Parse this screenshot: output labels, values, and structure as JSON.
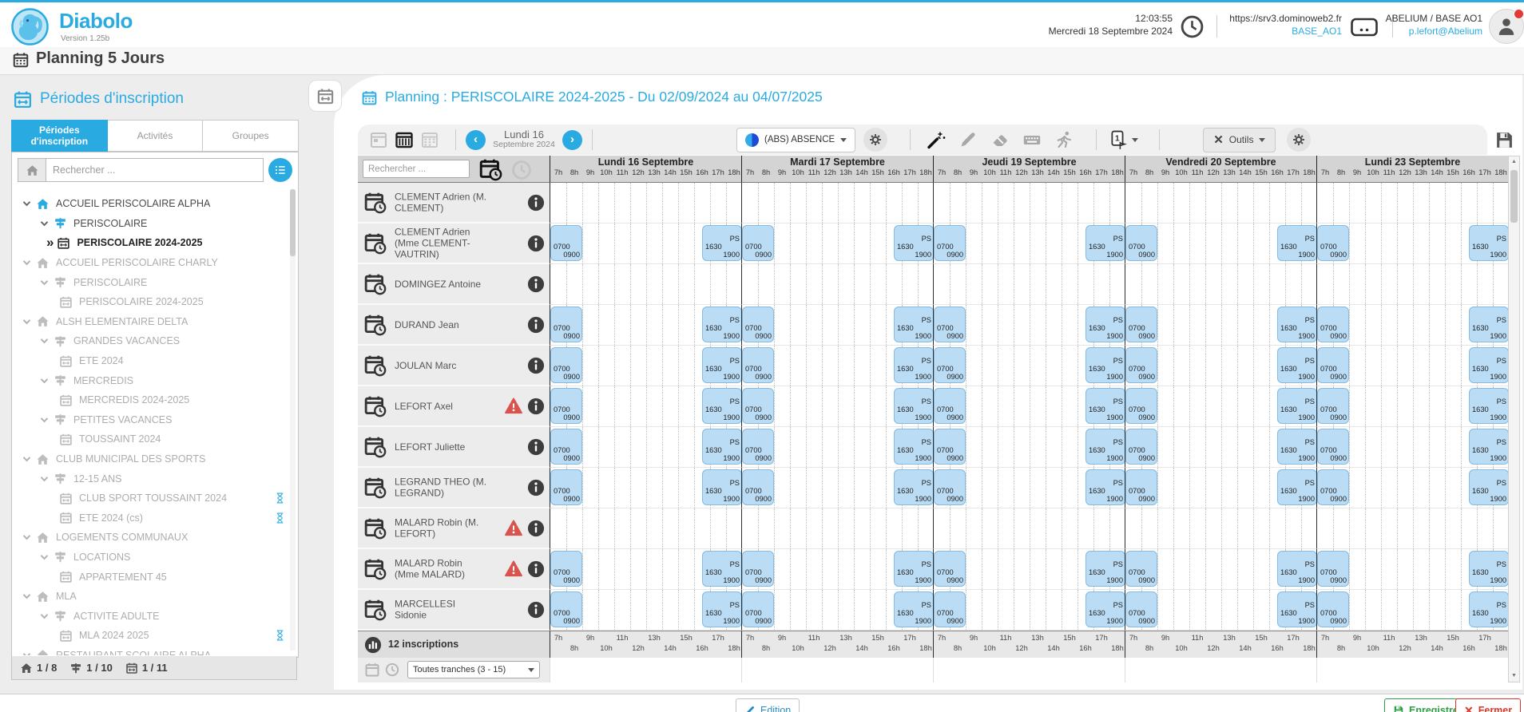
{
  "header": {
    "app_name": "Diabolo",
    "version": "Version 1.25b",
    "time": "12:03:55",
    "date": "Mercredi 18 Septembre 2024",
    "server_url": "https://srv3.dominoweb2.fr",
    "server_base": "BASE_AO1",
    "account": "ABELIUM / BASE AO1",
    "user_email": "p.lefort@Abelium"
  },
  "page_title": "Planning 5 Jours",
  "colors": {
    "accent": "#29abe2",
    "event_fill": "#badcf4",
    "event_border": "#85bbe2",
    "warning_red": "#d9534f",
    "save_green": "#2ea043",
    "close_red": "#e0352b"
  },
  "sidebar": {
    "title": "Périodes d'inscription",
    "tabs": [
      {
        "label": "Périodes\nd'inscription",
        "active": true
      },
      {
        "label": "Activités",
        "active": false
      },
      {
        "label": "Groupes",
        "active": false
      }
    ],
    "search_placeholder": "Rechercher ...",
    "tree": [
      {
        "label": "ACCUEIL PERISCOLAIRE ALPHA",
        "icon": "home",
        "level": 0,
        "chevron": true,
        "state": "active"
      },
      {
        "label": "PERISCOLAIRE",
        "icon": "signpost",
        "level": 1,
        "chevron": true,
        "state": "active"
      },
      {
        "label": "PERISCOLAIRE 2024-2025",
        "icon": "calendar",
        "level": 2,
        "chevron": false,
        "state": "selected"
      },
      {
        "label": "ACCUEIL PERISCOLAIRE CHARLY",
        "icon": "home",
        "level": 0,
        "chevron": true,
        "state": "dim"
      },
      {
        "label": "PERISCOLAIRE",
        "icon": "signpost",
        "level": 1,
        "chevron": true,
        "state": "dim"
      },
      {
        "label": "PERISCOLAIRE 2024-2025",
        "icon": "calendar",
        "level": 2,
        "chevron": false,
        "state": "dim"
      },
      {
        "label": "ALSH ELEMENTAIRE DELTA",
        "icon": "home",
        "level": 0,
        "chevron": true,
        "state": "dim"
      },
      {
        "label": "GRANDES VACANCES",
        "icon": "signpost",
        "level": 1,
        "chevron": true,
        "state": "dim"
      },
      {
        "label": "ETE 2024",
        "icon": "calendar",
        "level": 2,
        "chevron": false,
        "state": "dim"
      },
      {
        "label": "MERCREDIS",
        "icon": "signpost",
        "level": 1,
        "chevron": true,
        "state": "dim"
      },
      {
        "label": "MERCREDIS 2024-2025",
        "icon": "calendar",
        "level": 2,
        "chevron": false,
        "state": "dim"
      },
      {
        "label": "PETITES VACANCES",
        "icon": "signpost",
        "level": 1,
        "chevron": true,
        "state": "dim"
      },
      {
        "label": "TOUSSAINT 2024",
        "icon": "calendar",
        "level": 2,
        "chevron": false,
        "state": "dim"
      },
      {
        "label": "CLUB MUNICIPAL DES SPORTS",
        "icon": "home",
        "level": 0,
        "chevron": true,
        "state": "dim"
      },
      {
        "label": "12-15 ANS",
        "icon": "signpost",
        "level": 1,
        "chevron": true,
        "state": "dim"
      },
      {
        "label": "CLUB SPORT TOUSSAINT 2024",
        "icon": "calendar",
        "level": 2,
        "chevron": false,
        "state": "dim",
        "hourglass": true
      },
      {
        "label": "ETE 2024 (cs)",
        "icon": "calendar",
        "level": 2,
        "chevron": false,
        "state": "dim",
        "hourglass": true
      },
      {
        "label": "LOGEMENTS COMMUNAUX",
        "icon": "home",
        "level": 0,
        "chevron": true,
        "state": "dim"
      },
      {
        "label": "LOCATIONS",
        "icon": "signpost",
        "level": 1,
        "chevron": true,
        "state": "dim"
      },
      {
        "label": "APPARTEMENT 45",
        "icon": "calendar",
        "level": 2,
        "chevron": false,
        "state": "dim"
      },
      {
        "label": "MLA",
        "icon": "home",
        "level": 0,
        "chevron": true,
        "state": "dim"
      },
      {
        "label": "ACTIVITE ADULTE",
        "icon": "signpost",
        "level": 1,
        "chevron": true,
        "state": "dim"
      },
      {
        "label": "MLA 2024 2025",
        "icon": "calendar",
        "level": 2,
        "chevron": false,
        "state": "dim",
        "hourglass": true
      },
      {
        "label": "RESTAURANT SCOLAIRE ALPHA",
        "icon": "home",
        "level": 0,
        "chevron": true,
        "state": "dim"
      }
    ],
    "footer_counts": [
      {
        "icon": "home",
        "value": "1 / 8"
      },
      {
        "icon": "signpost",
        "value": "1 / 10"
      },
      {
        "icon": "calendar",
        "value": "1 / 11"
      }
    ]
  },
  "planning": {
    "title": "Planning : PERISCOLAIRE 2024-2025 - Du 02/09/2024 au 04/07/2025",
    "toolbar": {
      "nav_day": "Lundi 16",
      "nav_month": "Septembre 2024",
      "prev": "‹",
      "next": "›",
      "absence_label": "(ABS) ABSENCE",
      "badge_value": "1",
      "outils_label": "Outils"
    },
    "search_placeholder": "Rechercher ...",
    "days": [
      "Lundi 16 Septembre",
      "Mardi 17 Septembre",
      "Jeudi 19 Septembre",
      "Vendredi 20 Septembre",
      "Lundi 23 Septembre"
    ],
    "hours": [
      "7h",
      "8h",
      "9h",
      "10h",
      "11h",
      "12h",
      "13h",
      "14h",
      "15h",
      "16h",
      "17h",
      "18h"
    ],
    "day_start_hour": 7,
    "day_end_hour": 19,
    "blocks": {
      "morning": {
        "start": "0700",
        "end": "0900",
        "from_hour": 7,
        "to_hour": 9
      },
      "evening": {
        "start": "1630",
        "end": "1900",
        "tag": "PS",
        "from_hour": 16.5,
        "to_hour": 19
      }
    },
    "rows": [
      {
        "name": "CLEMENT Adrien (M. CLEMENT)",
        "warning": false,
        "events": false
      },
      {
        "name": "CLEMENT Adrien (Mme CLEMENT-VAUTRIN)",
        "warning": false,
        "events": true
      },
      {
        "name": "DOMINGEZ Antoine",
        "warning": false,
        "events": false
      },
      {
        "name": "DURAND Jean",
        "warning": false,
        "events": true
      },
      {
        "name": "JOULAN Marc",
        "warning": false,
        "events": true
      },
      {
        "name": "LEFORT Axel",
        "warning": true,
        "events": true
      },
      {
        "name": "LEFORT Juliette",
        "warning": false,
        "events": true
      },
      {
        "name": "LEGRAND THEO (M. LEGRAND)",
        "warning": false,
        "events": true
      },
      {
        "name": "MALARD Robin (M. LEFORT)",
        "warning": true,
        "events": false
      },
      {
        "name": "MALARD Robin (Mme MALARD)",
        "warning": true,
        "events": true
      },
      {
        "name": "MARCELLESI Sidonie",
        "warning": false,
        "events": true
      }
    ],
    "footer": {
      "inscriptions": "12 inscriptions",
      "tranche": "Toutes tranches (3 - 15)"
    }
  },
  "bottom_bar": {
    "edition": "Edition",
    "save": "Enregistrer",
    "close": "Fermer"
  }
}
